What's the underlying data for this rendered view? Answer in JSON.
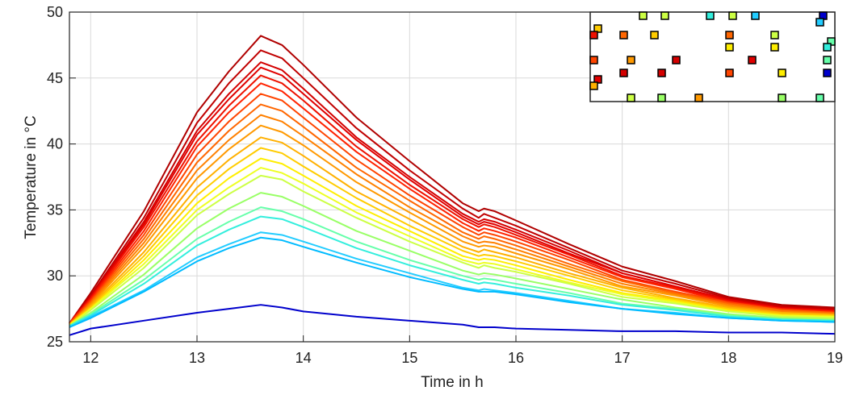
{
  "chart_data": {
    "type": "line",
    "xlabel": "Time in h",
    "ylabel": "Temperature in °C",
    "xlim": [
      11.8,
      19
    ],
    "xticks": [
      12,
      13,
      14,
      15,
      16,
      17,
      18,
      19
    ],
    "ylim": [
      25,
      50
    ],
    "yticks": [
      25,
      30,
      35,
      40,
      45,
      50
    ],
    "grid": true,
    "x": [
      11.8,
      12,
      12.5,
      13,
      13.3,
      13.6,
      13.8,
      14,
      14.5,
      15,
      15.5,
      15.65,
      15.7,
      15.8,
      16,
      16.5,
      17,
      17.5,
      18,
      18.5,
      19
    ],
    "series": [
      {
        "color": "#b00000",
        "values": [
          26.4,
          28.7,
          34.9,
          42.4,
          45.5,
          48.2,
          47.5,
          46.0,
          42.0,
          38.7,
          35.5,
          34.9,
          35.1,
          34.9,
          34.2,
          32.4,
          30.7,
          29.6,
          28.4,
          27.8,
          27.6
        ]
      },
      {
        "color": "#c00000",
        "values": [
          26.4,
          28.5,
          34.4,
          41.6,
          44.6,
          47.1,
          46.5,
          45.0,
          41.2,
          38.0,
          35.1,
          34.4,
          34.7,
          34.4,
          33.8,
          32.1,
          30.4,
          29.4,
          28.3,
          27.7,
          27.5
        ]
      },
      {
        "color": "#d40000",
        "values": [
          26.4,
          28.4,
          34.1,
          41.0,
          43.8,
          46.2,
          45.6,
          44.2,
          40.5,
          37.5,
          34.7,
          34.1,
          34.3,
          34.1,
          33.5,
          31.9,
          30.2,
          29.2,
          28.2,
          27.6,
          27.4
        ]
      },
      {
        "color": "#e00000",
        "values": [
          26.4,
          28.4,
          33.9,
          40.7,
          43.4,
          45.8,
          45.2,
          43.8,
          40.3,
          37.3,
          34.5,
          33.9,
          34.1,
          33.9,
          33.3,
          31.7,
          30.2,
          29.2,
          28.2,
          27.6,
          27.4
        ]
      },
      {
        "color": "#ee1100",
        "values": [
          26.4,
          28.3,
          33.7,
          40.2,
          42.9,
          45.2,
          44.6,
          43.3,
          39.8,
          36.9,
          34.3,
          33.7,
          33.9,
          33.7,
          33.1,
          31.6,
          30.0,
          29.1,
          28.1,
          27.5,
          27.3
        ]
      },
      {
        "color": "#ff2200",
        "values": [
          26.4,
          28.2,
          33.4,
          39.8,
          42.4,
          44.6,
          44.0,
          42.7,
          39.4,
          36.6,
          34.0,
          33.4,
          33.6,
          33.4,
          32.9,
          31.4,
          29.9,
          29.0,
          28.0,
          27.5,
          27.3
        ]
      },
      {
        "color": "#ff4400",
        "values": [
          26.4,
          28.1,
          33.1,
          39.2,
          41.7,
          43.8,
          43.3,
          42.0,
          38.8,
          36.1,
          33.7,
          33.1,
          33.3,
          33.1,
          32.6,
          31.2,
          29.7,
          28.8,
          28.0,
          27.4,
          27.2
        ]
      },
      {
        "color": "#ff6600",
        "values": [
          26.3,
          28.0,
          32.8,
          38.6,
          41.0,
          43.0,
          42.5,
          41.3,
          38.2,
          35.7,
          33.3,
          32.8,
          33.0,
          32.8,
          32.3,
          30.9,
          29.6,
          28.7,
          27.9,
          27.4,
          27.2
        ]
      },
      {
        "color": "#ff8000",
        "values": [
          26.3,
          27.9,
          32.5,
          38.0,
          40.3,
          42.2,
          41.7,
          40.6,
          37.7,
          35.2,
          33.0,
          32.5,
          32.6,
          32.5,
          32.0,
          30.7,
          29.4,
          28.6,
          27.8,
          27.3,
          27.1
        ]
      },
      {
        "color": "#ff9900",
        "values": [
          26.3,
          27.8,
          32.2,
          37.4,
          39.6,
          41.4,
          40.9,
          39.9,
          37.1,
          34.8,
          32.6,
          32.2,
          32.3,
          32.2,
          31.7,
          30.5,
          29.2,
          28.5,
          27.7,
          27.2,
          27.1
        ]
      },
      {
        "color": "#ffb000",
        "values": [
          26.3,
          27.7,
          31.8,
          36.7,
          38.8,
          40.5,
          40.1,
          39.1,
          36.4,
          34.3,
          32.2,
          31.8,
          32.0,
          31.8,
          31.4,
          30.2,
          29.1,
          28.3,
          27.6,
          27.2,
          27.0
        ]
      },
      {
        "color": "#ffcc00",
        "values": [
          26.3,
          27.6,
          31.5,
          36.1,
          38.1,
          39.7,
          39.3,
          38.3,
          35.9,
          33.8,
          31.9,
          31.5,
          31.6,
          31.5,
          31.1,
          30.0,
          28.9,
          28.2,
          27.5,
          27.1,
          27.0
        ]
      },
      {
        "color": "#ffee00",
        "values": [
          26.3,
          27.5,
          31.2,
          35.5,
          37.4,
          38.9,
          38.5,
          37.6,
          35.3,
          33.4,
          31.5,
          31.2,
          31.3,
          31.2,
          30.8,
          29.7,
          28.7,
          28.1,
          27.4,
          27.0,
          26.9
        ]
      },
      {
        "color": "#eeff22",
        "values": [
          26.2,
          27.5,
          30.9,
          35.0,
          36.7,
          38.2,
          37.8,
          37.0,
          34.8,
          33.0,
          31.2,
          30.9,
          31.0,
          30.9,
          30.5,
          29.5,
          28.6,
          28.0,
          27.3,
          27.0,
          26.9
        ]
      },
      {
        "color": "#ccff44",
        "values": [
          26.2,
          27.4,
          30.6,
          34.6,
          36.2,
          37.6,
          37.3,
          36.4,
          34.4,
          32.6,
          31.0,
          30.6,
          30.8,
          30.6,
          30.3,
          29.4,
          28.4,
          27.9,
          27.3,
          26.9,
          26.8
        ]
      },
      {
        "color": "#99ff66",
        "values": [
          26.2,
          27.2,
          30.1,
          33.6,
          35.1,
          36.3,
          36.0,
          35.3,
          33.4,
          31.9,
          30.4,
          30.1,
          30.2,
          30.1,
          29.8,
          29.0,
          28.2,
          27.6,
          27.1,
          26.8,
          26.7
        ]
      },
      {
        "color": "#66ffaa",
        "values": [
          26.2,
          27.1,
          29.7,
          32.8,
          34.1,
          35.2,
          34.9,
          34.3,
          32.6,
          31.2,
          30.0,
          29.7,
          29.8,
          29.7,
          29.4,
          28.7,
          27.9,
          27.5,
          27.0,
          26.7,
          26.6
        ]
      },
      {
        "color": "#33eedd",
        "values": [
          26.2,
          27.0,
          29.4,
          32.3,
          33.5,
          34.5,
          34.3,
          33.7,
          32.1,
          30.8,
          29.7,
          29.4,
          29.5,
          29.4,
          29.1,
          28.5,
          27.8,
          27.4,
          26.9,
          26.7,
          26.6
        ]
      },
      {
        "color": "#22ccff",
        "values": [
          26.1,
          26.9,
          28.9,
          31.4,
          32.4,
          33.3,
          33.1,
          32.6,
          31.3,
          30.2,
          29.1,
          28.9,
          29.0,
          28.9,
          28.7,
          28.1,
          27.5,
          27.2,
          26.8,
          26.6,
          26.5
        ]
      },
      {
        "color": "#00bbff",
        "values": [
          26.1,
          26.8,
          28.8,
          31.1,
          32.1,
          32.9,
          32.7,
          32.2,
          31.0,
          29.9,
          29.0,
          28.8,
          28.8,
          28.8,
          28.6,
          28.0,
          27.5,
          27.1,
          26.8,
          26.6,
          26.5
        ]
      },
      {
        "color": "#0000cc",
        "values": [
          25.5,
          26.0,
          26.6,
          27.2,
          27.5,
          27.8,
          27.6,
          27.3,
          26.9,
          26.6,
          26.3,
          26.1,
          26.1,
          26.1,
          26.0,
          25.9,
          25.8,
          25.8,
          25.7,
          25.7,
          25.6
        ]
      }
    ]
  }
}
